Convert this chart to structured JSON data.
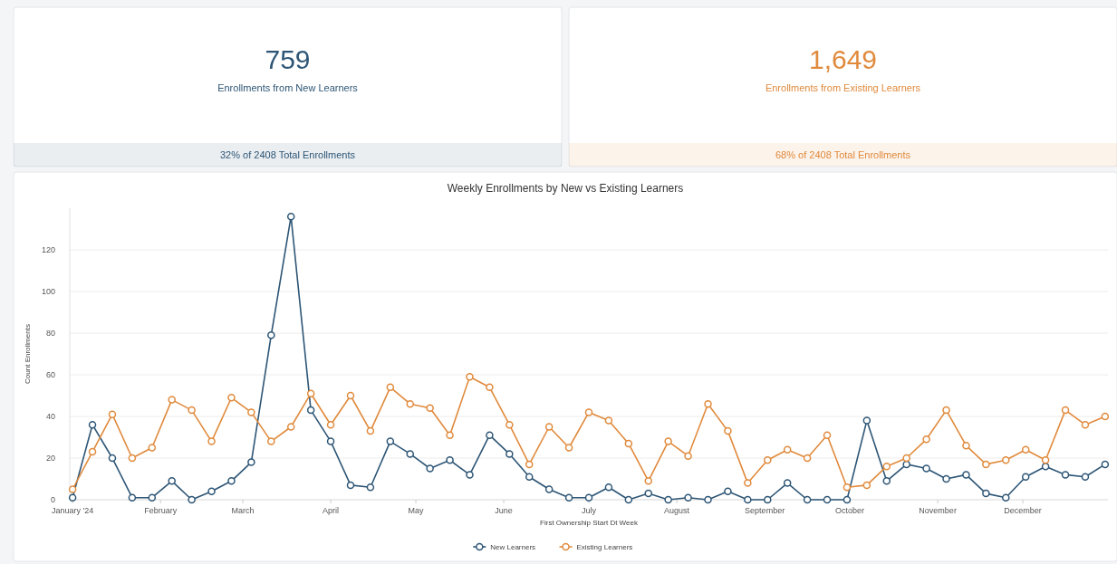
{
  "chart_data": [
    {
      "type": "other",
      "title": "759",
      "subtitle": "Enrollments from New Learners",
      "annotations": [
        "32% of 2408 Total Enrollments"
      ],
      "color": "#2e5676"
    },
    {
      "type": "other",
      "title": "1,649",
      "subtitle": "Enrollments from Existing Learners",
      "annotations": [
        "68% of 2408 Total Enrollments"
      ],
      "color": "#e08a3c"
    },
    {
      "type": "line",
      "title": "Weekly Enrollments by New vs Existing Learners",
      "xlabel": "First Ownership Start Dt Week",
      "ylabel": "Count Enrollments",
      "x": [
        "2024-01-01",
        "2024-01-08",
        "2024-01-15",
        "2024-01-22",
        "2024-01-29",
        "2024-02-05",
        "2024-02-12",
        "2024-02-19",
        "2024-02-26",
        "2024-03-04",
        "2024-03-11",
        "2024-03-18",
        "2024-03-25",
        "2024-04-01",
        "2024-04-08",
        "2024-04-15",
        "2024-04-22",
        "2024-04-29",
        "2024-05-06",
        "2024-05-13",
        "2024-05-20",
        "2024-05-27",
        "2024-06-03",
        "2024-06-10",
        "2024-06-17",
        "2024-06-24",
        "2024-07-01",
        "2024-07-08",
        "2024-07-15",
        "2024-07-22",
        "2024-07-29",
        "2024-08-05",
        "2024-08-12",
        "2024-08-19",
        "2024-08-26",
        "2024-09-02",
        "2024-09-09",
        "2024-09-16",
        "2024-09-23",
        "2024-09-30",
        "2024-10-07",
        "2024-10-14",
        "2024-10-21",
        "2024-10-28",
        "2024-11-04",
        "2024-11-11",
        "2024-11-18",
        "2024-11-25",
        "2024-12-02",
        "2024-12-09",
        "2024-12-16",
        "2024-12-23",
        "2024-12-30"
      ],
      "series": [
        {
          "name": "New Learners",
          "color": "#2e5676",
          "values": [
            1,
            36,
            20,
            1,
            1,
            9,
            0,
            4,
            9,
            18,
            79,
            136,
            43,
            28,
            7,
            6,
            28,
            22,
            15,
            19,
            12,
            31,
            22,
            11,
            5,
            1,
            1,
            6,
            0,
            3,
            0,
            1,
            0,
            4,
            0,
            0,
            8,
            0,
            0,
            0,
            38,
            9,
            17,
            15,
            10,
            12,
            3,
            1,
            11,
            16,
            12,
            11,
            17
          ]
        },
        {
          "name": "Existing Learners",
          "color": "#e08a3c",
          "values": [
            5,
            23,
            41,
            20,
            25,
            48,
            43,
            28,
            49,
            42,
            28,
            35,
            51,
            36,
            50,
            33,
            54,
            46,
            44,
            31,
            59,
            54,
            36,
            17,
            35,
            25,
            42,
            38,
            27,
            9,
            28,
            21,
            46,
            33,
            8,
            19,
            24,
            20,
            31,
            6,
            7,
            16,
            20,
            29,
            43,
            26,
            17,
            19,
            24,
            19,
            43,
            36,
            40
          ]
        }
      ],
      "xlim": [
        "2023-12-31",
        "2024-12-31"
      ],
      "xticks": [
        {
          "value": "2024-01-01",
          "label": "January '24"
        },
        {
          "value": "2024-02-01",
          "label": "February"
        },
        {
          "value": "2024-03-01",
          "label": "March"
        },
        {
          "value": "2024-04-01",
          "label": "April"
        },
        {
          "value": "2024-05-01",
          "label": "May"
        },
        {
          "value": "2024-06-01",
          "label": "June"
        },
        {
          "value": "2024-07-01",
          "label": "July"
        },
        {
          "value": "2024-08-01",
          "label": "August"
        },
        {
          "value": "2024-09-01",
          "label": "September"
        },
        {
          "value": "2024-10-01",
          "label": "October"
        },
        {
          "value": "2024-11-01",
          "label": "November"
        },
        {
          "value": "2024-12-01",
          "label": "December"
        }
      ],
      "ylim": [
        0,
        140
      ],
      "yticks": [
        0,
        20,
        40,
        60,
        80,
        100,
        120
      ],
      "grid": "y",
      "legend": "bottom",
      "marker": "circle",
      "line_style": "solid"
    }
  ]
}
